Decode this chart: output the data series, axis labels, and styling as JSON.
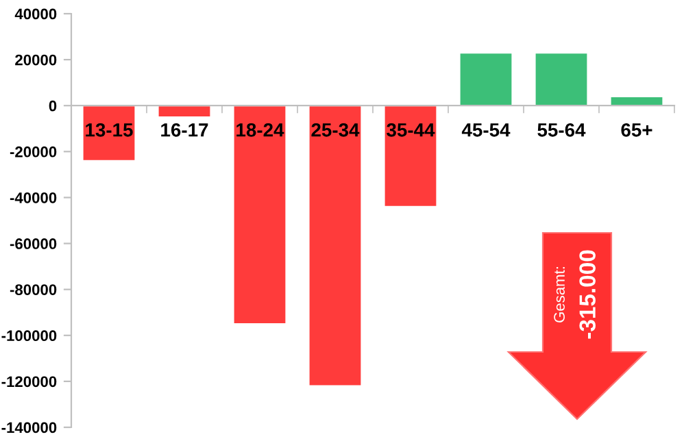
{
  "chart_data": {
    "type": "bar",
    "categories": [
      "13-15",
      "16-17",
      "18-24",
      "25-34",
      "35-44",
      "45-54",
      "55-64",
      "65+"
    ],
    "values": [
      -24000,
      -5000,
      -95000,
      -122000,
      -44000,
      23000,
      23000,
      4000
    ],
    "colors": [
      "#ff3b3b",
      "#ff3b3b",
      "#ff3b3b",
      "#ff3b3b",
      "#ff3b3b",
      "#3cbf78",
      "#3cbf78",
      "#3cbf78"
    ],
    "ylim": [
      -140000,
      40000
    ],
    "yticks": [
      -140000,
      -120000,
      -100000,
      -80000,
      -60000,
      -40000,
      -20000,
      0,
      20000,
      40000
    ],
    "grid": false,
    "legend": false,
    "annotations": [
      "Gesamt:",
      "-315.000"
    ]
  }
}
